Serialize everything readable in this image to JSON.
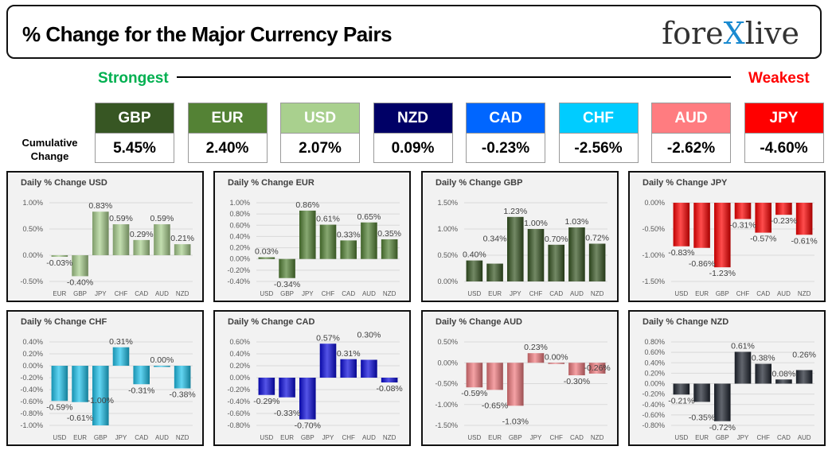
{
  "header": {
    "title": "% Change for the Major Currency Pairs",
    "logo": "forexlive"
  },
  "strongest_label": "Strongest",
  "weakest_label": "Weakest",
  "cumulative_label": "Cumulative Change",
  "currencies": [
    {
      "code": "GBP",
      "value": "5.45%",
      "color": "#375623"
    },
    {
      "code": "EUR",
      "value": "2.40%",
      "color": "#548235"
    },
    {
      "code": "USD",
      "value": "2.07%",
      "color": "#a9d08e"
    },
    {
      "code": "NZD",
      "value": "0.09%",
      "color": "#000066"
    },
    {
      "code": "CAD",
      "value": "-0.23%",
      "color": "#0066ff"
    },
    {
      "code": "CHF",
      "value": "-2.56%",
      "color": "#00ccff"
    },
    {
      "code": "AUD",
      "value": "-2.62%",
      "color": "#ff7c80"
    },
    {
      "code": "JPY",
      "value": "-4.60%",
      "color": "#ff0000"
    }
  ],
  "chart_data": [
    {
      "type": "bar",
      "title": "Daily % Change USD",
      "categories": [
        "EUR",
        "GBP",
        "JPY",
        "CHF",
        "CAD",
        "AUD",
        "NZD"
      ],
      "values": [
        -0.03,
        -0.4,
        0.83,
        0.59,
        0.29,
        0.59,
        0.21
      ],
      "ylim": [
        -0.5,
        1.0
      ],
      "ystep": 0.5,
      "color": "#a9d08e",
      "grid": true
    },
    {
      "type": "bar",
      "title": "Daily % Change EUR",
      "categories": [
        "USD",
        "GBP",
        "JPY",
        "CHF",
        "CAD",
        "AUD",
        "NZD"
      ],
      "values": [
        0.03,
        -0.34,
        0.86,
        0.61,
        0.33,
        0.65,
        0.35
      ],
      "ylim": [
        -0.4,
        1.0
      ],
      "ystep": 0.2,
      "color": "#548235",
      "grid": true
    },
    {
      "type": "bar",
      "title": "Daily % Change GBP",
      "categories": [
        "USD",
        "EUR",
        "JPY",
        "CHF",
        "CAD",
        "AUD",
        "NZD"
      ],
      "values": [
        0.4,
        0.34,
        1.23,
        1.0,
        0.7,
        1.03,
        0.72
      ],
      "ylim": [
        0,
        1.5
      ],
      "ystep": 0.5,
      "color": "#375623",
      "grid": true
    },
    {
      "type": "bar",
      "title": "Daily % Change JPY",
      "categories": [
        "USD",
        "EUR",
        "GBP",
        "CHF",
        "CAD",
        "AUD",
        "NZD"
      ],
      "values": [
        -0.83,
        -0.86,
        -1.23,
        -0.31,
        -0.57,
        -0.23,
        -0.61
      ],
      "ylim": [
        -1.5,
        0
      ],
      "ystep": 0.5,
      "color": "#ff0000",
      "grid": true
    },
    {
      "type": "bar",
      "title": "Daily % Change CHF",
      "categories": [
        "USD",
        "EUR",
        "GBP",
        "JPY",
        "CAD",
        "AUD",
        "NZD"
      ],
      "values": [
        -0.59,
        -0.61,
        -1.0,
        0.31,
        -0.31,
        0.0,
        -0.38
      ],
      "ylim": [
        -1.0,
        0.4
      ],
      "ystep": 0.2,
      "color": "#1fc3ec",
      "grid": true
    },
    {
      "type": "bar",
      "title": "Daily % Change CAD",
      "categories": [
        "USD",
        "EUR",
        "GBP",
        "JPY",
        "CHF",
        "AUD",
        "NZD"
      ],
      "values": [
        -0.29,
        -0.33,
        -0.7,
        0.57,
        0.31,
        0.3,
        -0.08
      ],
      "ylim": [
        -0.8,
        0.6
      ],
      "ystep": 0.2,
      "color": "#0a0adc",
      "grid": true
    },
    {
      "type": "bar",
      "title": "Daily % Change AUD",
      "categories": [
        "USD",
        "EUR",
        "GBP",
        "JPY",
        "CHF",
        "CAD",
        "NZD"
      ],
      "values": [
        -0.59,
        -0.65,
        -1.03,
        0.23,
        0.0,
        -0.3,
        -0.26
      ],
      "ylim": [
        -1.5,
        0.5
      ],
      "ystep": 0.5,
      "color": "#f07a7e",
      "grid": true
    },
    {
      "type": "bar",
      "title": "Daily % Change NZD",
      "categories": [
        "USD",
        "EUR",
        "GBP",
        "JPY",
        "CHF",
        "CAD",
        "AUD"
      ],
      "values": [
        -0.21,
        -0.35,
        -0.72,
        0.61,
        0.38,
        0.08,
        0.26
      ],
      "ylim": [
        -0.8,
        0.8
      ],
      "ystep": 0.2,
      "color": "#1f2530",
      "grid": true
    }
  ]
}
